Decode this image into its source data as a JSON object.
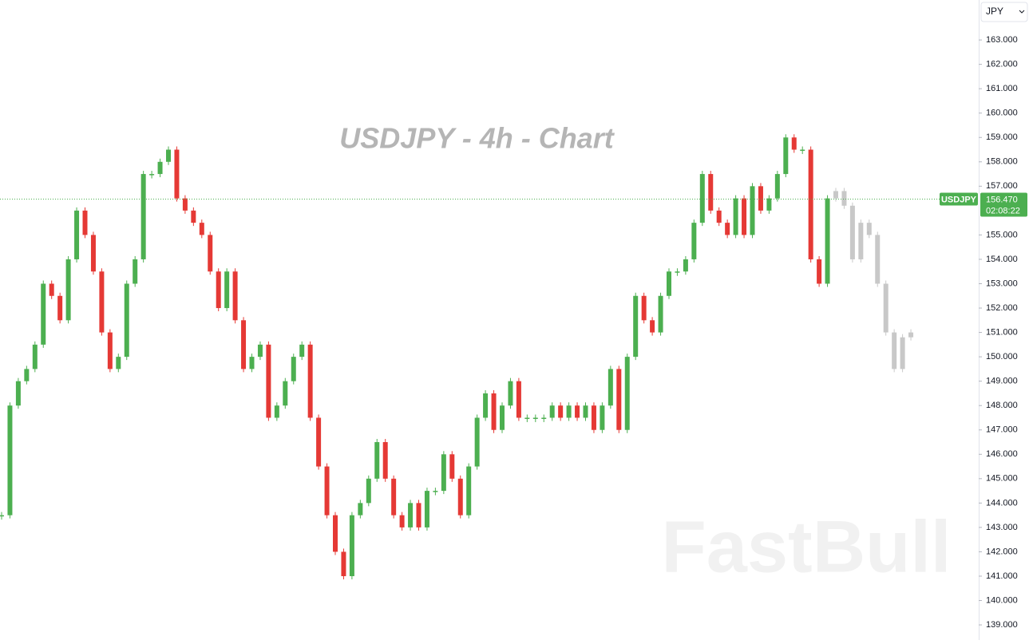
{
  "chart_data": {
    "type": "candlestick",
    "title": "USDJPY - 4h - Chart",
    "watermark": "FastBull",
    "currency": "JPY",
    "values": [
      143.5,
      148,
      149,
      149.5,
      150.5,
      153,
      152.5,
      151.5,
      154,
      156,
      155,
      153.5,
      151,
      149.5,
      150,
      153,
      154,
      157.5,
      157.5,
      158,
      158.5,
      156.5,
      156,
      155.5,
      155,
      153.5,
      152,
      153.5,
      151.5,
      149.5,
      150,
      150.5,
      147.5,
      148,
      149,
      150,
      150.5,
      147.5,
      145.5,
      143.5,
      142,
      141,
      143.5,
      144,
      145,
      146.5,
      145,
      143.5,
      143,
      144,
      143,
      144.5,
      144.5,
      146,
      145,
      143.5,
      145.5,
      147.5,
      148.5,
      147,
      148,
      149,
      147.5,
      147.5,
      147.5,
      147.5,
      148,
      147.5,
      148,
      147.5,
      148,
      147,
      148,
      149.5,
      147,
      150,
      152.5,
      151.5,
      151,
      152.5,
      153.5,
      153.5,
      154,
      155.5,
      157.5,
      156,
      155.5,
      155,
      156.5,
      155,
      157,
      156,
      156.5,
      157.5,
      159,
      158.5,
      158.5,
      154,
      153,
      156.5
    ],
    "projection_values": [
      156.8,
      156.2,
      154,
      155.5,
      155,
      153,
      151,
      149.5,
      150.8,
      151
    ],
    "up_color": "#4caf50",
    "down_color": "#e53935",
    "projection_color": "#c8c8c8",
    "ylim": [
      138.38,
      164.64
    ],
    "yticks": [
      {
        "value": 139,
        "label": "139.000"
      },
      {
        "value": 140,
        "label": "140.000"
      },
      {
        "value": 141,
        "label": "141.000"
      },
      {
        "value": 142,
        "label": "142.000"
      },
      {
        "value": 143,
        "label": "143.000"
      },
      {
        "value": 144,
        "label": "144.000"
      },
      {
        "value": 145,
        "label": "145.000"
      },
      {
        "value": 146,
        "label": "146.000"
      },
      {
        "value": 147,
        "label": "147.000"
      },
      {
        "value": 148,
        "label": "148.000"
      },
      {
        "value": 149,
        "label": "149.000"
      },
      {
        "value": 150,
        "label": "150.000"
      },
      {
        "value": 151,
        "label": "151.000"
      },
      {
        "value": 152,
        "label": "152.000"
      },
      {
        "value": 153,
        "label": "153.000"
      },
      {
        "value": 154,
        "label": "154.000"
      },
      {
        "value": 155,
        "label": "155.000"
      },
      {
        "value": 157,
        "label": "157.000"
      },
      {
        "value": 158,
        "label": "158.000"
      },
      {
        "value": 159,
        "label": "159.000"
      },
      {
        "value": 160,
        "label": "160.000"
      },
      {
        "value": 161,
        "label": "161.000"
      },
      {
        "value": 162,
        "label": "162.000"
      },
      {
        "value": 163,
        "label": "163.000"
      }
    ],
    "last_price": {
      "value": 156.47,
      "label": "156.470"
    },
    "symbol": "USDJPY",
    "countdown": "02:08:22",
    "price_line_color": "#4caf50"
  }
}
